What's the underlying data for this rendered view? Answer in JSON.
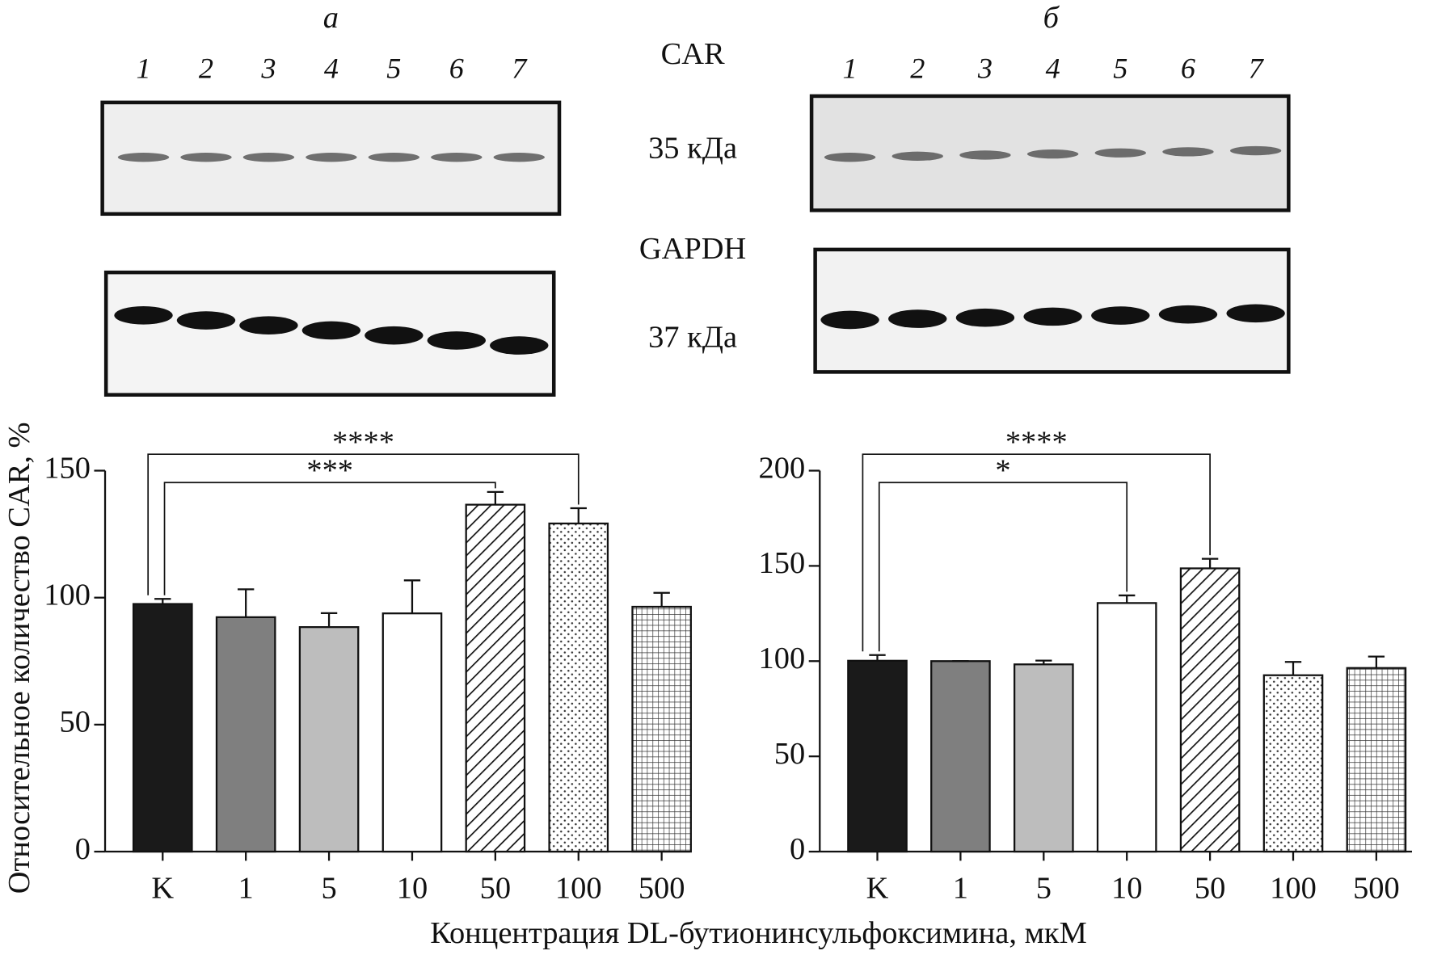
{
  "blots": {
    "panel_labels": [
      "а",
      "б"
    ],
    "lanes": [
      [
        "1",
        "2",
        "3",
        "4",
        "5",
        "6",
        "7"
      ],
      [
        "1",
        "2",
        "3",
        "4",
        "5",
        "6",
        "7"
      ]
    ],
    "proteins": [
      {
        "name": "CAR",
        "mass": "35 кДа"
      },
      {
        "name": "GAPDH",
        "mass": "37 кДа"
      }
    ]
  },
  "y_label": "Относительное количество CAR, %",
  "x_label": "Концентрация DL-бутионинсульфоксимина, мкМ",
  "chart_data": [
    {
      "type": "bar",
      "categories": [
        "K",
        "1",
        "5",
        "10",
        "50",
        "100",
        "500"
      ],
      "values": [
        97.5,
        92.3,
        88.4,
        93.8,
        136.6,
        129.2,
        96.4
      ],
      "errors": [
        2,
        11,
        5.5,
        13,
        5,
        6,
        5.5
      ],
      "colors": [
        "#1a1a1a",
        "#7f7f7f",
        "#bdbdbd",
        "#ffffff",
        "#ffffff",
        "#ffffff",
        "#ffffff"
      ],
      "patterns": [
        "solid",
        "solid",
        "solid",
        "solid",
        "hatch",
        "dots",
        "crosshatch"
      ],
      "ylim": [
        0,
        150
      ],
      "yticks": [
        0,
        50,
        100,
        150
      ],
      "annotations": [
        {
          "label": "****",
          "between": [
            "K",
            "100"
          ]
        },
        {
          "label": "***",
          "between": [
            "K",
            "50"
          ]
        }
      ]
    },
    {
      "type": "bar",
      "categories": [
        "K",
        "1",
        "5",
        "10",
        "50",
        "100",
        "500"
      ],
      "values": [
        100.2,
        100,
        98.3,
        130.5,
        148.7,
        92.6,
        96.4
      ],
      "errors": [
        3,
        0,
        2,
        4,
        5,
        7,
        6
      ],
      "colors": [
        "#1a1a1a",
        "#7f7f7f",
        "#bdbdbd",
        "#ffffff",
        "#ffffff",
        "#ffffff",
        "#ffffff"
      ],
      "patterns": [
        "solid",
        "solid",
        "solid",
        "solid",
        "hatch",
        "dots",
        "crosshatch"
      ],
      "ylim": [
        0,
        200
      ],
      "yticks": [
        0,
        50,
        100,
        150,
        200
      ],
      "annotations": [
        {
          "label": "****",
          "between": [
            "K",
            "50"
          ]
        },
        {
          "label": "*",
          "between": [
            "K",
            "10"
          ]
        }
      ]
    }
  ]
}
